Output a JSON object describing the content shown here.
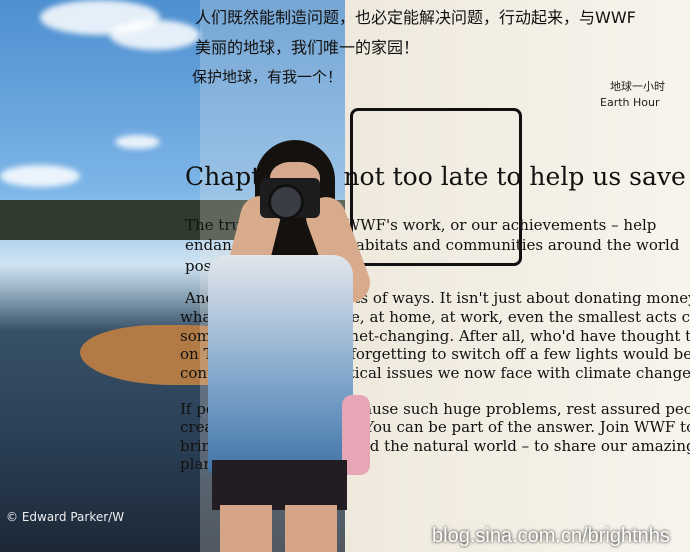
{
  "poster_text": {
    "cn_line_1": "人们既然能制造问题，也必定能解决问题，行动起来，与WWF",
    "cn_line_2": "美丽的地球，我们唯一的家园！",
    "cn_line_3": "保护地球，有我一个！",
    "earth_hour_cn": "地球一小时",
    "earth_hour_en": "Earth Hour",
    "chapter_heading": "Chapter It's not too late to help us save our",
    "body": [
      "The truth is, most of WWF's work, or our achievements – help",
      "endangered wildlife, habitats and communities around the world",
      "possible without you.",
      "And you can help in lots of ways. It isn't just about donating money, it's",
      "what you do in your life, at home, at work, even the smallest acts can",
      "something big and planet-changing. After all, who'd have thought that",
      "on TV on standby and forgetting to switch off a few lights would be",
      "contributing to the critical issues we now face with climate change?",
      "If people's actions can cause such huge problems, rest assured people",
      "create HUGE solutions. You can be part of the answer. Join WWF to",
      "bring together people and the natural world – to share our amazing",
      "planet is up"
    ],
    "photo_credit": "© Edward Parker/W",
    "watermark": "blog.sina.com.cn/brightnhs"
  }
}
